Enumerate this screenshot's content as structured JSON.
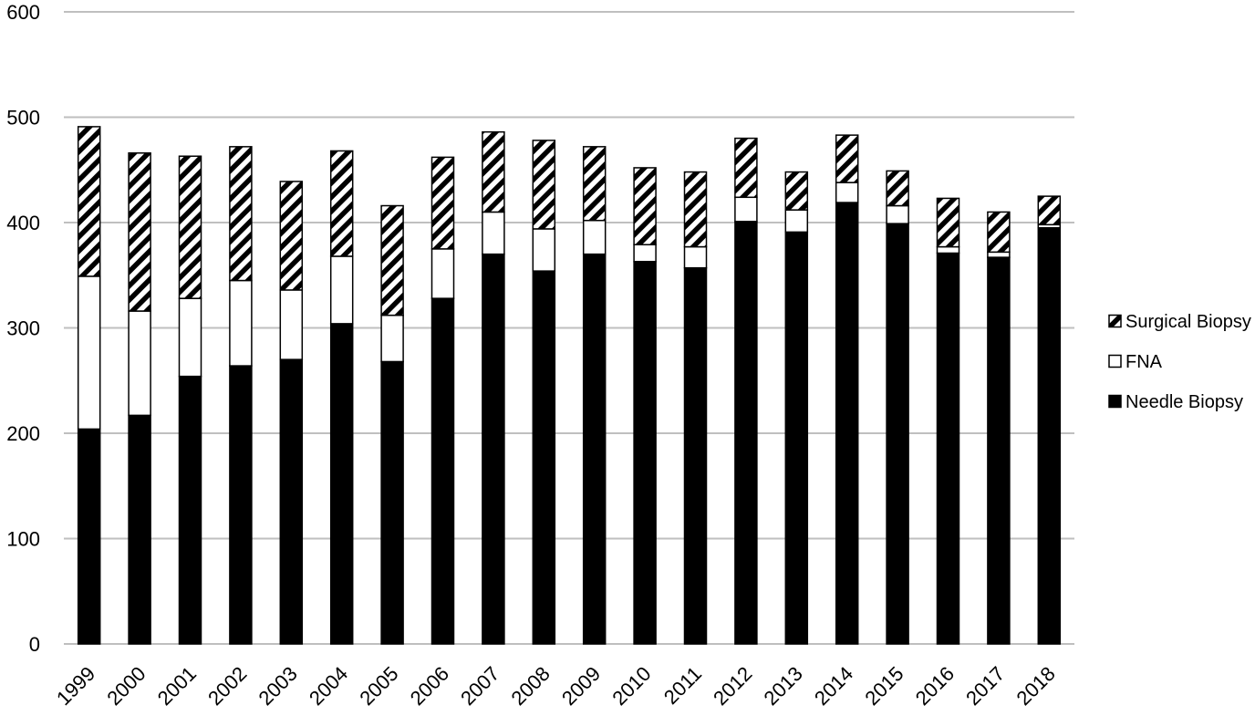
{
  "chart_data": {
    "type": "bar",
    "stacked": true,
    "title": "",
    "xlabel": "",
    "ylabel": "",
    "ylim": [
      0,
      600
    ],
    "yticks": [
      0,
      100,
      200,
      300,
      400,
      500,
      600
    ],
    "grid": true,
    "legend_position": "right",
    "categories": [
      "1999",
      "2000",
      "2001",
      "2002",
      "2003",
      "2004",
      "2005",
      "2006",
      "2007",
      "2008",
      "2009",
      "2010",
      "2011",
      "2012",
      "2013",
      "2014",
      "2015",
      "2016",
      "2017",
      "2018"
    ],
    "series": [
      {
        "name": "Needle Biopsy",
        "fill": "solid",
        "values": [
          204,
          217,
          254,
          264,
          270,
          304,
          268,
          328,
          370,
          354,
          370,
          363,
          357,
          401,
          391,
          419,
          399,
          371,
          367,
          395
        ]
      },
      {
        "name": "FNA",
        "fill": "white",
        "values": [
          145,
          99,
          74,
          81,
          66,
          64,
          44,
          47,
          40,
          40,
          32,
          16,
          20,
          23,
          21,
          19,
          17,
          6,
          5,
          3
        ]
      },
      {
        "name": "Surgical Biopsy",
        "fill": "hatched",
        "values": [
          142,
          150,
          135,
          127,
          103,
          100,
          104,
          87,
          76,
          84,
          70,
          73,
          71,
          56,
          36,
          45,
          33,
          46,
          38,
          27
        ]
      }
    ],
    "legend_order": [
      "Surgical Biopsy",
      "FNA",
      "Needle Biopsy"
    ]
  },
  "colors": {
    "bar_fill": "#000000",
    "bar_outline": "#000000",
    "grid": "#bfbfbf",
    "background": "#ffffff"
  }
}
